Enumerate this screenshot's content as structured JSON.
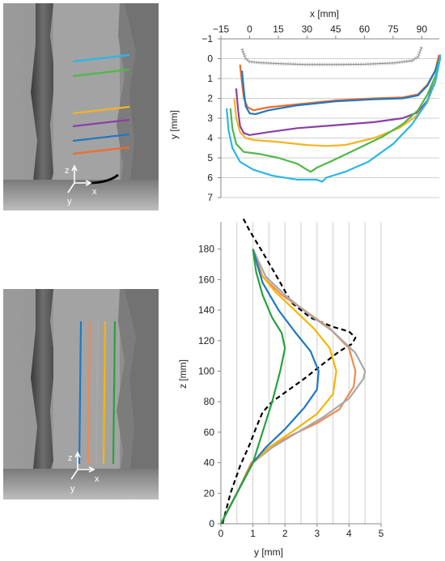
{
  "photos": [
    {
      "axis_labels": {
        "z": "z",
        "x": "x",
        "y": "y"
      },
      "line_colors": [
        "#2ab7e6",
        "#50b848",
        "#f5b324",
        "#8b3fa5",
        "#1f78c1",
        "#f26b2a"
      ]
    },
    {
      "axis_labels": {
        "z": "z",
        "x": "x",
        "y": "y"
      },
      "line_colors": [
        "#1f78c1",
        "#f0894f",
        "#a8a8a8",
        "#f7b500",
        "#27a13d"
      ]
    }
  ],
  "chart_data": [
    {
      "type": "line",
      "xlabel": "x [mm]",
      "ylabel": "y [mm]",
      "x_axis_position": "top",
      "y_inverted": true,
      "xlim": [
        -15,
        100
      ],
      "ylim": [
        -1,
        7
      ],
      "xticks": [
        -15,
        0,
        15,
        30,
        45,
        60,
        75,
        90
      ],
      "yticks": [
        -1,
        0,
        1,
        2,
        3,
        4,
        5,
        6,
        7
      ],
      "grid": "horizontal",
      "series": [
        {
          "color": "#8c8c8c",
          "style": "markers",
          "x": [
            -4,
            -2,
            0,
            5,
            15,
            30,
            45,
            60,
            75,
            85,
            88,
            90
          ],
          "y": [
            -0.5,
            0.0,
            0.15,
            0.2,
            0.25,
            0.3,
            0.3,
            0.28,
            0.22,
            0.1,
            -0.1,
            -0.6
          ]
        },
        {
          "color": "#f26b2a",
          "x": [
            -5,
            -4,
            -3,
            -1,
            2,
            10,
            25,
            45,
            65,
            80,
            88,
            93,
            97,
            99
          ],
          "y": [
            0.3,
            1.2,
            2.0,
            2.45,
            2.6,
            2.45,
            2.3,
            2.1,
            2.0,
            1.95,
            1.8,
            1.3,
            0.6,
            -0.2
          ]
        },
        {
          "color": "#1f78c1",
          "x": [
            -4,
            -3,
            -2,
            0,
            3,
            10,
            25,
            45,
            65,
            80,
            88,
            93,
            97,
            100
          ],
          "y": [
            0.6,
            1.6,
            2.4,
            2.75,
            2.8,
            2.6,
            2.35,
            2.15,
            2.05,
            2.0,
            1.85,
            1.35,
            0.6,
            -0.2
          ]
        },
        {
          "color": "#8b3fa5",
          "x": [
            -7,
            -6,
            -5,
            -3,
            0,
            10,
            25,
            45,
            65,
            80,
            88,
            93,
            97,
            100
          ],
          "y": [
            1.5,
            2.6,
            3.4,
            3.75,
            3.85,
            3.7,
            3.5,
            3.35,
            3.2,
            3.0,
            2.7,
            2.1,
            1.0,
            -0.2
          ]
        },
        {
          "color": "#f5b324",
          "x": [
            -8,
            -7,
            -5,
            -2,
            2,
            15,
            30,
            40,
            50,
            65,
            78,
            87,
            93,
            97,
            100
          ],
          "y": [
            2.0,
            3.0,
            3.7,
            4.0,
            4.1,
            4.2,
            4.35,
            4.4,
            4.35,
            4.0,
            3.5,
            2.9,
            2.2,
            1.1,
            -0.2
          ]
        },
        {
          "color": "#50b848",
          "x": [
            -10,
            -9,
            -7,
            -3,
            5,
            15,
            25,
            30,
            32,
            35,
            42,
            55,
            70,
            80,
            88,
            93,
            97,
            100
          ],
          "y": [
            2.5,
            3.5,
            4.3,
            4.7,
            4.8,
            5.0,
            5.3,
            5.6,
            5.7,
            5.5,
            5.2,
            4.6,
            3.9,
            3.3,
            2.6,
            1.8,
            0.9,
            -0.2
          ]
        },
        {
          "color": "#2ab7e6",
          "x": [
            -12,
            -11,
            -9,
            -5,
            2,
            12,
            25,
            35,
            38,
            40,
            50,
            62,
            75,
            85,
            92,
            97,
            100
          ],
          "y": [
            2.5,
            3.6,
            4.5,
            5.2,
            5.6,
            5.9,
            6.1,
            6.1,
            6.2,
            6.0,
            5.7,
            5.2,
            4.3,
            3.3,
            2.3,
            1.2,
            -0.2
          ]
        }
      ]
    },
    {
      "type": "line",
      "xlabel": "y [mm]",
      "ylabel": "z [mm]",
      "xlim": [
        0,
        5
      ],
      "ylim": [
        0,
        200
      ],
      "xticks": [
        0,
        1,
        2,
        3,
        4,
        5
      ],
      "yticks": [
        0,
        20,
        40,
        60,
        80,
        100,
        120,
        140,
        160,
        180
      ],
      "grid": "vertical",
      "series": [
        {
          "color": "#000000",
          "style": "dashed",
          "x": [
            0.05,
            0.3,
            0.6,
            0.9,
            1.1,
            1.3,
            1.6,
            2.0,
            2.6,
            3.2,
            3.7,
            4.1,
            4.2,
            4.0,
            3.5,
            2.8,
            2.2,
            1.8,
            1.3,
            0.9,
            0.7
          ],
          "y": [
            0,
            20,
            38,
            52,
            63,
            73,
            80,
            86,
            95,
            105,
            113,
            118,
            122,
            126,
            129,
            135,
            145,
            160,
            178,
            192,
            200
          ]
        },
        {
          "color": "#f0894f",
          "x": [
            0,
            0.5,
            0.95,
            1.5,
            2.2,
            3.0,
            3.7,
            4.15,
            4.2,
            4.0,
            3.4,
            2.6,
            1.9,
            1.3,
            1.0
          ],
          "y": [
            0,
            20,
            40,
            50,
            58,
            66,
            75,
            90,
            100,
            115,
            128,
            140,
            150,
            162,
            180
          ]
        },
        {
          "color": "#a8a8a8",
          "x": [
            0,
            0.5,
            1.0,
            1.6,
            2.4,
            3.2,
            4.0,
            4.45,
            4.5,
            4.2,
            3.5,
            2.7,
            2.0,
            1.4,
            1.0
          ],
          "y": [
            0,
            20,
            40,
            50,
            60,
            70,
            82,
            95,
            100,
            112,
            126,
            138,
            150,
            162,
            180
          ]
        },
        {
          "color": "#f7b500",
          "x": [
            0,
            0.5,
            1.0,
            1.5,
            2.2,
            3.0,
            3.5,
            3.6,
            3.4,
            2.9,
            2.3,
            1.7,
            1.2,
            1.0
          ],
          "y": [
            0,
            20,
            40,
            50,
            60,
            72,
            85,
            100,
            115,
            128,
            140,
            152,
            165,
            180
          ]
        },
        {
          "color": "#1f78c1",
          "x": [
            0,
            0.5,
            1.0,
            1.4,
            2.0,
            2.6,
            3.0,
            3.05,
            2.8,
            2.3,
            1.8,
            1.3,
            1.0
          ],
          "y": [
            0,
            20,
            40,
            50,
            62,
            76,
            88,
            100,
            113,
            126,
            140,
            158,
            180
          ]
        },
        {
          "color": "#27a13d",
          "x": [
            0,
            0.5,
            1.0,
            1.3,
            1.6,
            1.85,
            2.0,
            1.9,
            1.6,
            1.3,
            1.1,
            1.0
          ],
          "y": [
            0,
            20,
            40,
            60,
            80,
            100,
            115,
            125,
            135,
            150,
            165,
            180
          ]
        }
      ]
    }
  ]
}
